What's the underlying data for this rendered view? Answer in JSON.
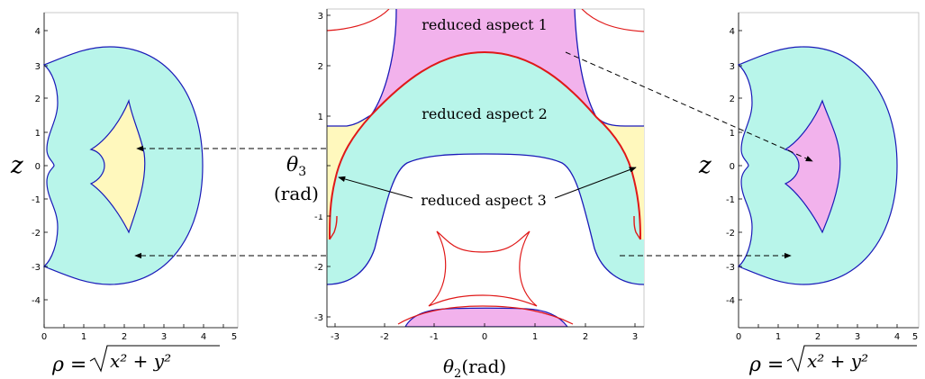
{
  "colors": {
    "cyan": "#b8f5ea",
    "yellow": "#fff8bd",
    "pink": "#f2b2ec",
    "blue": "#1a1ab8",
    "red": "#e01818"
  },
  "left_plot": {
    "x_ticks": [
      "0",
      "1",
      "2",
      "3",
      "4",
      "5"
    ],
    "y_ticks": [
      "4",
      "3",
      "2",
      "1",
      "0",
      "-1",
      "-2",
      "-3",
      "-4"
    ],
    "y_label": "z",
    "x_label_lhs": "ρ =",
    "x_label_rad": "x² + y²"
  },
  "middle_plot": {
    "x_ticks": [
      "-3",
      "-2",
      "-1",
      "0",
      "1",
      "2",
      "3"
    ],
    "y_ticks": [
      "3",
      "2",
      "1",
      "0",
      "-1",
      "-2",
      "-3"
    ],
    "y_label_main": "θ",
    "y_label_sub": "3",
    "y_label_unit": "(rad)",
    "x_label_main": "θ",
    "x_label_sub": "2",
    "x_label_unit": "(rad)",
    "region_labels": {
      "aspect1": "reduced aspect 1",
      "aspect2": "reduced aspect 2",
      "aspect3": "reduced aspect 3"
    }
  },
  "right_plot": {
    "x_ticks": [
      "0",
      "1",
      "2",
      "3",
      "4",
      "5"
    ],
    "y_ticks": [
      "4",
      "3",
      "2",
      "1",
      "0",
      "-1",
      "-2",
      "-3",
      "-4"
    ],
    "y_label": "z",
    "x_label_lhs": "ρ =",
    "x_label_rad": "x² + y²"
  }
}
